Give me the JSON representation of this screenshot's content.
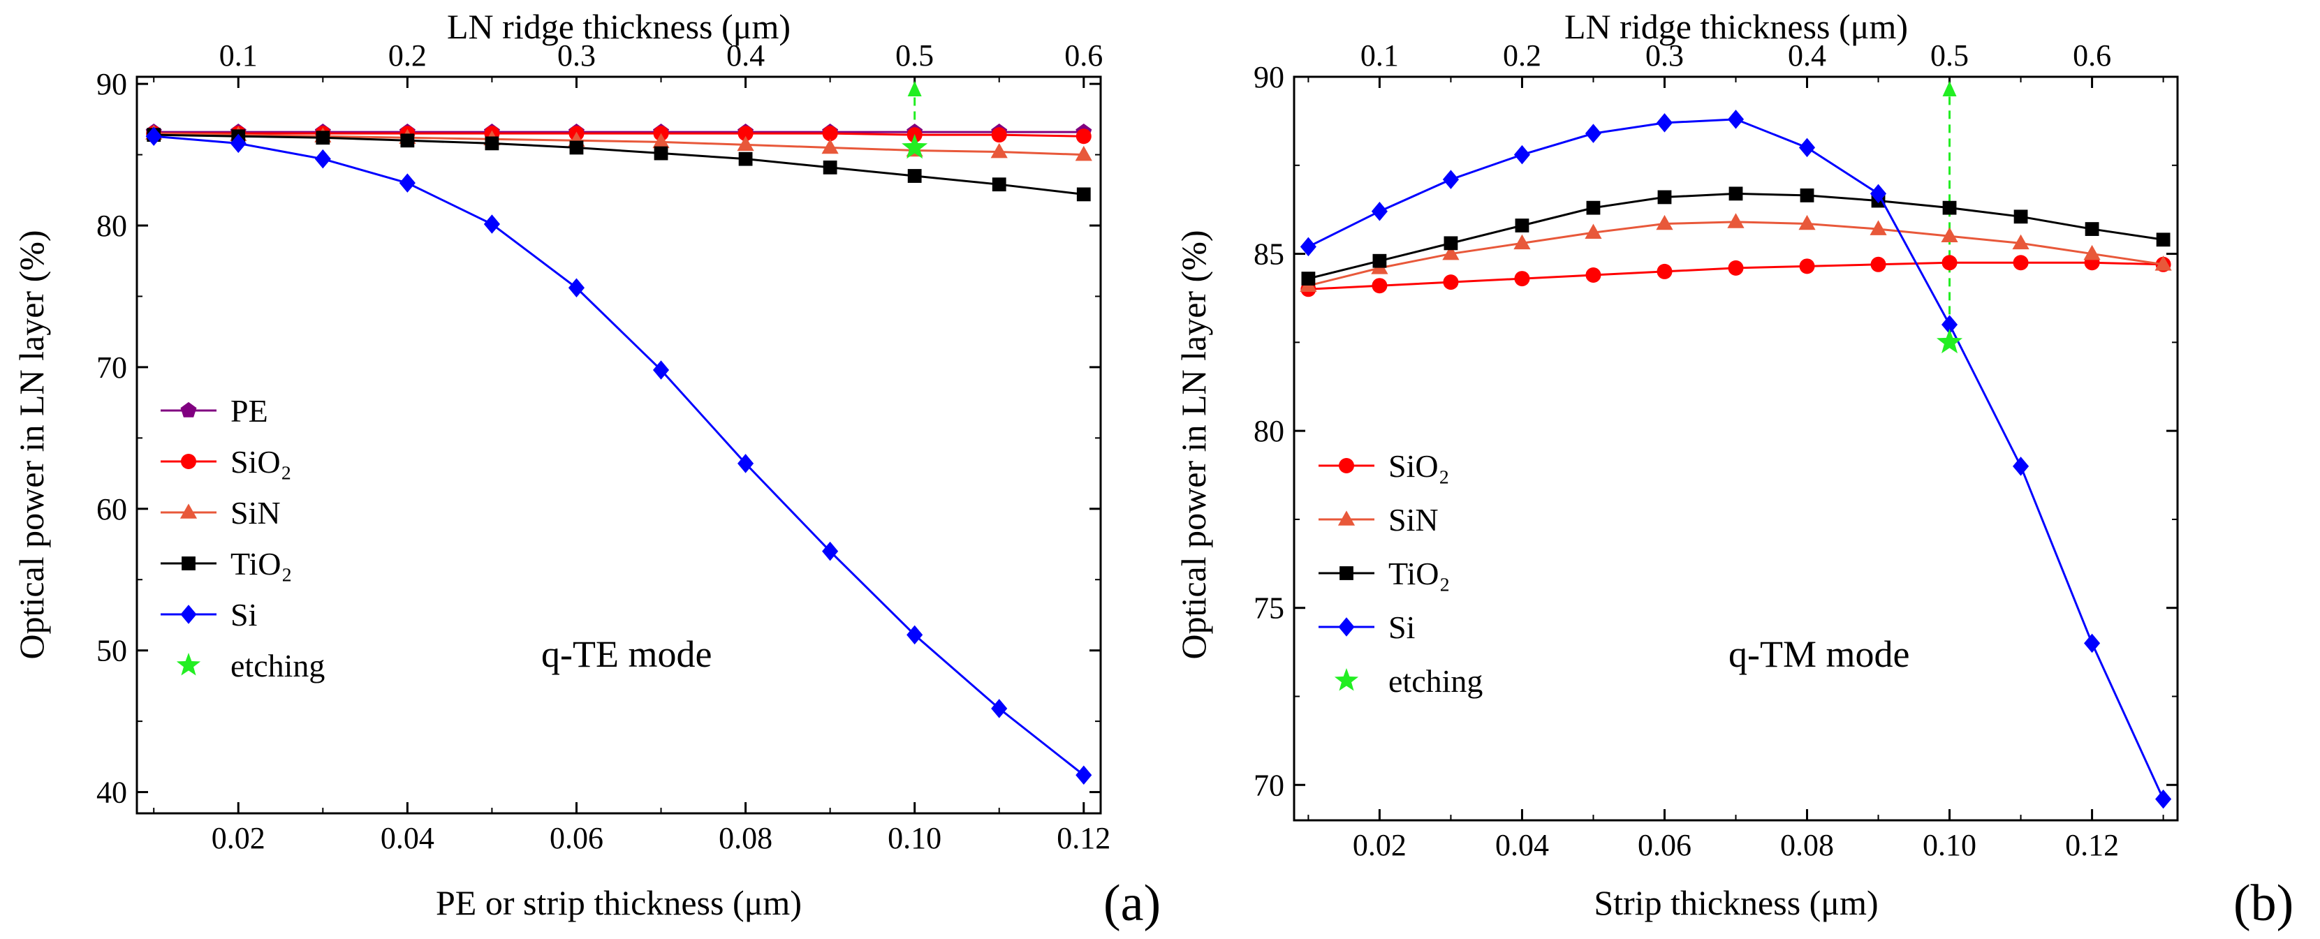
{
  "chart_data": [
    {
      "type": "line",
      "panel_label": "(a)",
      "mode_label": "q-TE mode",
      "xlabel": "PE or strip thickness (μm)",
      "ylabel": "Optical power in LN layer (%)",
      "top_xlabel": "LN ridge thickness (μm)",
      "xlim": [
        0.008,
        0.122
      ],
      "ylim": [
        38.5,
        90.5
      ],
      "x_ticks": [
        0.02,
        0.04,
        0.06,
        0.08,
        0.1,
        0.12
      ],
      "x_tick_labels": [
        "0.02",
        "0.04",
        "0.06",
        "0.08",
        "0.10",
        "0.12"
      ],
      "y_ticks": [
        40,
        50,
        60,
        70,
        80,
        90
      ],
      "y_tick_labels": [
        "40",
        "50",
        "60",
        "70",
        "80",
        "90"
      ],
      "top_ticks": [
        0.1,
        0.2,
        0.3,
        0.4,
        0.5,
        0.6
      ],
      "top_tick_labels": [
        "0.1",
        "0.2",
        "0.3",
        "0.4",
        "0.5",
        "0.6"
      ],
      "top_scale": 5,
      "x": [
        0.01,
        0.02,
        0.03,
        0.04,
        0.05,
        0.06,
        0.07,
        0.08,
        0.09,
        0.1,
        0.11,
        0.12
      ],
      "legend": [
        "PE",
        "SiO₂",
        "SiN",
        "TiO₂",
        "Si",
        "etching"
      ],
      "series": [
        {
          "name": "PE",
          "color": "#800080",
          "marker": "pentagon",
          "values": [
            86.6,
            86.6,
            86.6,
            86.6,
            86.6,
            86.6,
            86.6,
            86.6,
            86.6,
            86.6,
            86.6,
            86.6
          ]
        },
        {
          "name": "SiO₂",
          "color": "#ff0000",
          "marker": "circle",
          "values": [
            86.5,
            86.5,
            86.5,
            86.5,
            86.5,
            86.5,
            86.5,
            86.5,
            86.5,
            86.4,
            86.4,
            86.3
          ]
        },
        {
          "name": "SiN",
          "color": "#e8583a",
          "marker": "triangle",
          "values": [
            86.5,
            86.4,
            86.3,
            86.2,
            86.1,
            86.0,
            85.9,
            85.7,
            85.5,
            85.3,
            85.2,
            85.0
          ]
        },
        {
          "name": "TiO₂",
          "color": "#000000",
          "marker": "square",
          "values": [
            86.4,
            86.3,
            86.2,
            86.0,
            85.8,
            85.5,
            85.1,
            84.7,
            84.1,
            83.5,
            82.9,
            82.2
          ]
        },
        {
          "name": "Si",
          "color": "#0000ff",
          "marker": "diamond",
          "values": [
            86.3,
            85.8,
            84.7,
            83.0,
            80.1,
            75.6,
            69.8,
            63.2,
            57.0,
            51.1,
            45.9,
            41.2
          ]
        }
      ],
      "etching": {
        "name": "etching",
        "color": "#22ee22",
        "x": 0.1,
        "y": 85.5
      },
      "arrow": {
        "x": 0.1,
        "from": 85.5,
        "to": 90.5
      }
    },
    {
      "type": "line",
      "panel_label": "(b)",
      "mode_label": "q-TM mode",
      "xlabel": "Strip thickness (μm)",
      "ylabel": "Optical power in LN layer (%)",
      "top_xlabel": "LN ridge thickness (μm)",
      "xlim": [
        0.008,
        0.132
      ],
      "ylim": [
        69,
        90
      ],
      "x_ticks": [
        0.02,
        0.04,
        0.06,
        0.08,
        0.1,
        0.12
      ],
      "x_tick_labels": [
        "0.02",
        "0.04",
        "0.06",
        "0.08",
        "0.10",
        "0.12"
      ],
      "y_ticks": [
        70,
        75,
        80,
        85,
        90
      ],
      "y_tick_labels": [
        "70",
        "75",
        "80",
        "85",
        "90"
      ],
      "top_ticks": [
        0.1,
        0.2,
        0.3,
        0.4,
        0.5,
        0.6
      ],
      "top_tick_labels": [
        "0.1",
        "0.2",
        "0.3",
        "0.4",
        "0.5",
        "0.6"
      ],
      "top_scale": 5,
      "x": [
        0.01,
        0.02,
        0.03,
        0.04,
        0.05,
        0.06,
        0.07,
        0.08,
        0.09,
        0.1,
        0.11,
        0.12,
        0.13
      ],
      "legend": [
        "SiO₂",
        "SiN",
        "TiO₂",
        "Si",
        "etching"
      ],
      "series": [
        {
          "name": "SiO₂",
          "color": "#ff0000",
          "marker": "circle",
          "values": [
            84.0,
            84.1,
            84.2,
            84.3,
            84.4,
            84.5,
            84.6,
            84.65,
            84.7,
            84.75,
            84.75,
            84.75,
            84.7
          ]
        },
        {
          "name": "SiN",
          "color": "#e8583a",
          "marker": "triangle",
          "values": [
            84.1,
            84.6,
            85.0,
            85.3,
            85.6,
            85.85,
            85.9,
            85.85,
            85.7,
            85.5,
            85.3,
            85.0,
            84.7
          ]
        },
        {
          "name": "TiO₂",
          "color": "#000000",
          "marker": "square",
          "values": [
            84.3,
            84.8,
            85.3,
            85.8,
            86.3,
            86.6,
            86.7,
            86.65,
            86.5,
            86.3,
            86.05,
            85.7,
            85.4
          ]
        },
        {
          "name": "Si",
          "color": "#0000ff",
          "marker": "diamond",
          "values": [
            85.2,
            86.2,
            87.1,
            87.8,
            88.4,
            88.7,
            88.8,
            88.0,
            86.7,
            83.0,
            79.0,
            74.0,
            69.6
          ]
        }
      ],
      "etching": {
        "name": "etching",
        "color": "#22ee22",
        "x": 0.1,
        "y": 82.5
      },
      "arrow": {
        "x": 0.1,
        "from": 82.5,
        "to": 90
      }
    }
  ]
}
